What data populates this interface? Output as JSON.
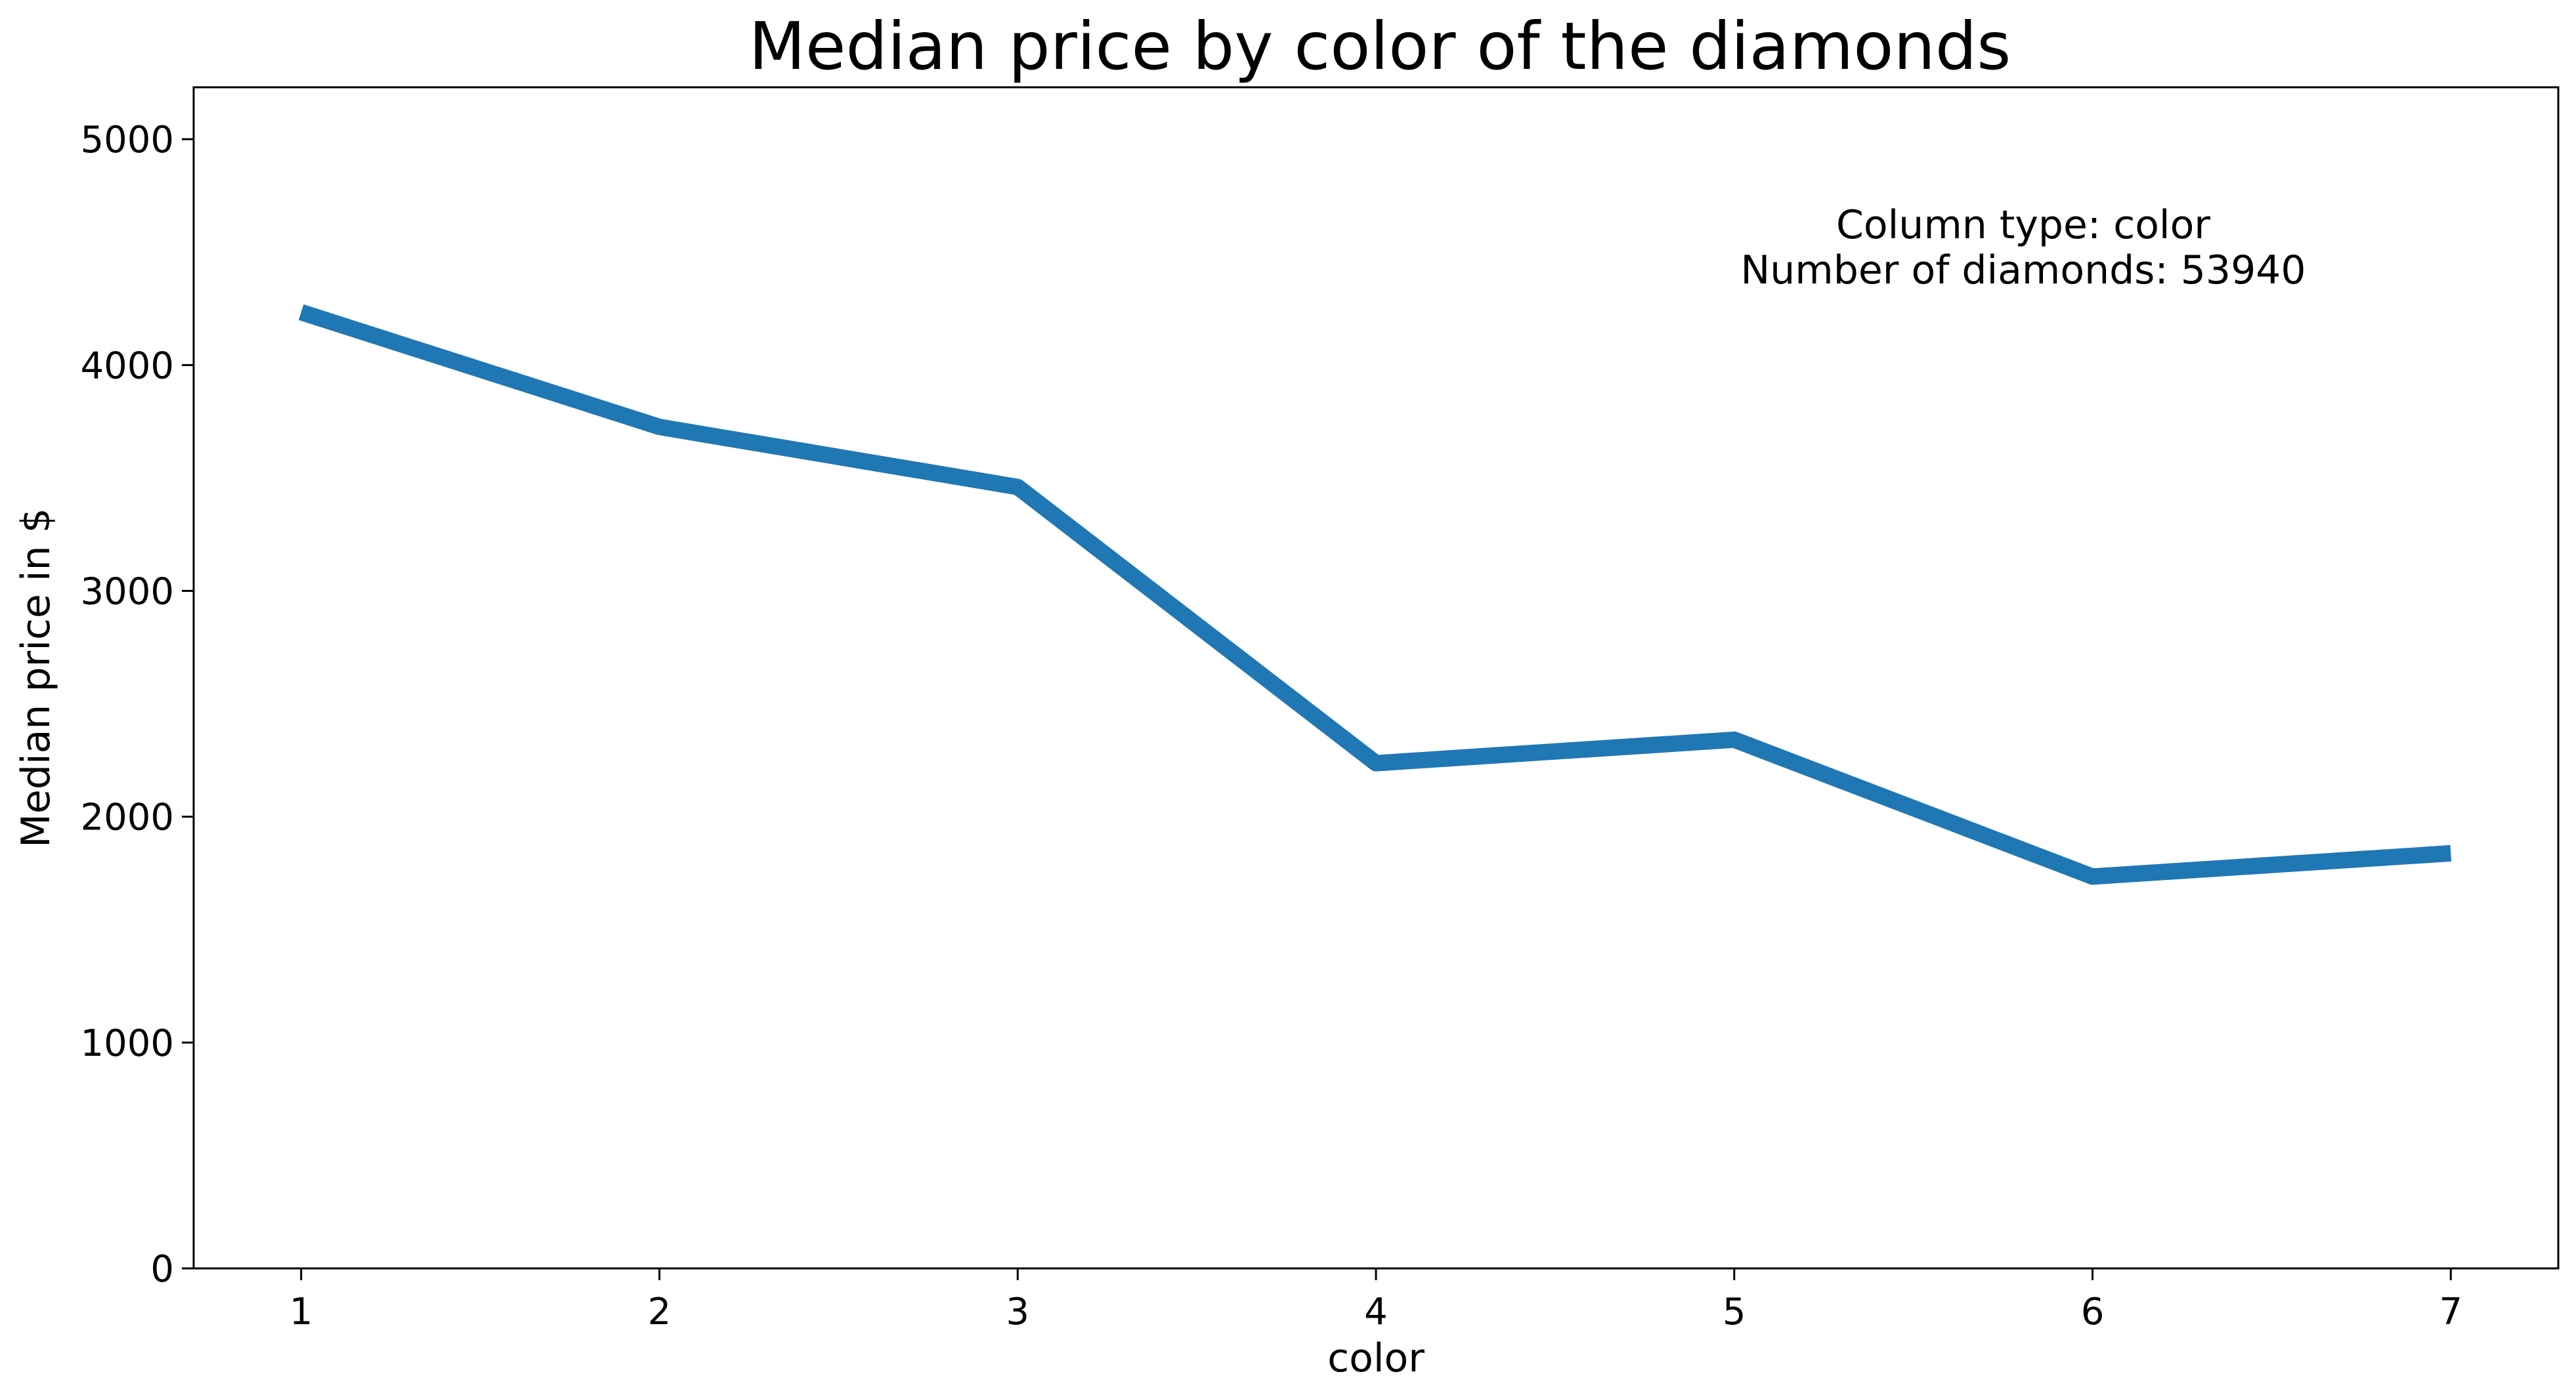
{
  "chart_data": {
    "type": "line",
    "title": "Median price by color of the diamonds",
    "xlabel": "color",
    "ylabel": "Median price in $",
    "x": [
      1,
      2,
      3,
      4,
      5,
      6,
      7
    ],
    "series": [
      {
        "values": [
          4234,
          3726,
          3460,
          2237,
          2341,
          1735,
          1838
        ],
        "color": "#1f77b4"
      }
    ],
    "xlim": [
      0.7,
      7.3
    ],
    "ylim": [
      0,
      5230
    ],
    "xticks": [
      1,
      2,
      3,
      4,
      5,
      6,
      7
    ],
    "yticks": [
      0,
      1000,
      2000,
      3000,
      4000,
      5000
    ],
    "grid": false,
    "legend": "none",
    "annotation": {
      "lines": [
        "Column type: color",
        "Number of diamonds: 53940"
      ]
    }
  }
}
